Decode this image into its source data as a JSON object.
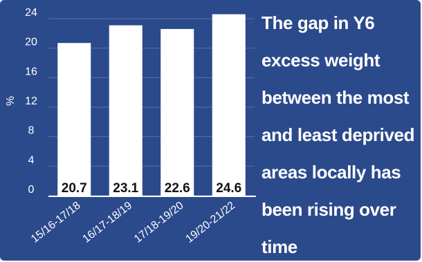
{
  "headline": {
    "lines": [
      "The gap in Y6",
      "excess weight",
      "between the most",
      "and least deprived",
      "areas locally has",
      "been rising over",
      "time"
    ]
  },
  "colors": {
    "background": "#2b4a8c",
    "bar": "#ffffff",
    "text": "#ffffff",
    "value_label": "#111111"
  },
  "chart_data": {
    "type": "bar",
    "title": "",
    "xlabel": "",
    "ylabel": "%",
    "categories": [
      "15/16-17/18",
      "16/17-18/19",
      "17/18-19/20",
      "19/20-21/22"
    ],
    "values": [
      20.7,
      23.1,
      22.6,
      24.6
    ],
    "value_labels": [
      "20.7",
      "23.1",
      "22.6",
      "24.6"
    ],
    "y_ticks": [
      "0",
      "4",
      "8",
      "12",
      "16",
      "20",
      "24"
    ],
    "ylim": [
      0,
      24
    ],
    "grid": true,
    "legend": "none"
  }
}
